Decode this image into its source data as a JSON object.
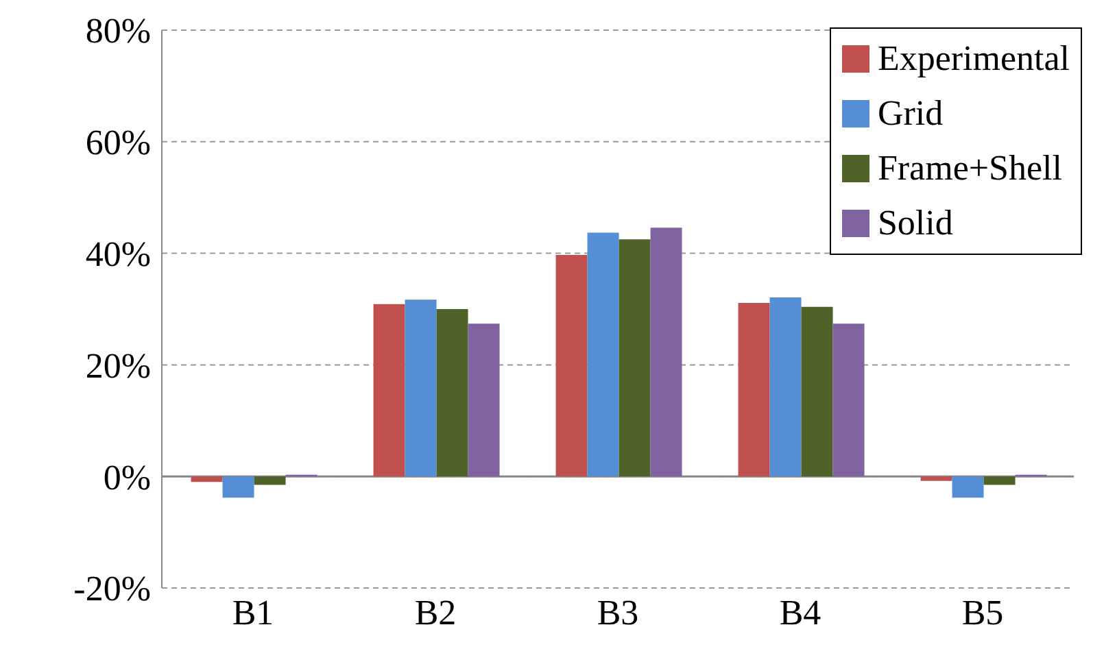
{
  "chart_data": {
    "type": "bar",
    "categories": [
      "B1",
      "B2",
      "B3",
      "B4",
      "B5"
    ],
    "series": [
      {
        "name": "Experimental",
        "color": "#c0504d",
        "values": [
          -1.0,
          30.9,
          39.7,
          31.1,
          -0.8
        ]
      },
      {
        "name": "Grid",
        "color": "#558ed5",
        "values": [
          -3.8,
          31.7,
          43.7,
          32.1,
          -3.8
        ]
      },
      {
        "name": "Frame+Shell",
        "color": "#4f6228",
        "values": [
          -1.5,
          30.0,
          42.5,
          30.4,
          -1.5
        ]
      },
      {
        "name": "Solid",
        "color": "#8064a2",
        "values": [
          0.3,
          27.4,
          44.6,
          27.4,
          0.3
        ]
      }
    ],
    "ylim": [
      -20,
      80
    ],
    "yticks": [
      {
        "value": -20,
        "label": "-20%"
      },
      {
        "value": 0,
        "label": "0%"
      },
      {
        "value": 20,
        "label": "20%"
      },
      {
        "value": 40,
        "label": "40%"
      },
      {
        "value": 60,
        "label": "60%"
      },
      {
        "value": 80,
        "label": "80%"
      }
    ],
    "grid": "y",
    "legend": "top right"
  }
}
